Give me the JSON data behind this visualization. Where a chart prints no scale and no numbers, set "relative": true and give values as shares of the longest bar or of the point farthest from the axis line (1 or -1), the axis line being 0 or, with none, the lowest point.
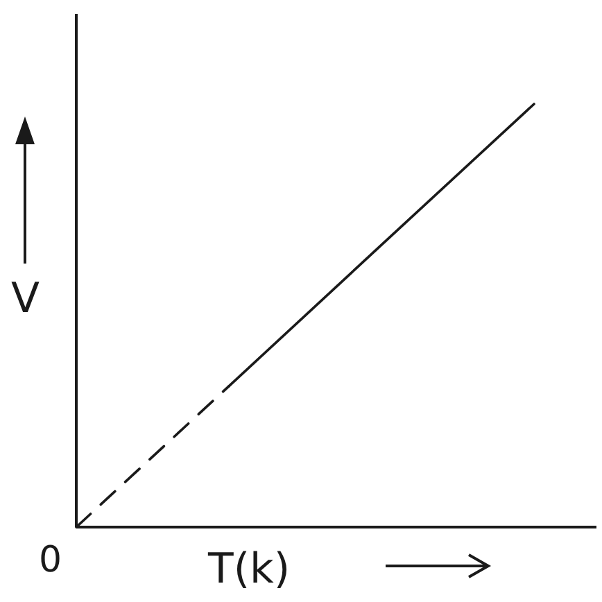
{
  "chart_data": {
    "type": "line",
    "relative": true,
    "xlabel": "T(k)",
    "ylabel": "V",
    "annotations": [
      "0"
    ],
    "categories": [
      null,
      null,
      null,
      null
    ],
    "series": [
      {
        "color": "#1a1a1a",
        "values": [
          0,
          0.333,
          null,
          null
        ],
        "line_style": "dashed"
      },
      {
        "color": "#1a1a1a",
        "values": [
          null,
          0.333,
          0.667,
          1
        ],
        "line_style": "solid"
      }
    ],
    "marker": "none"
  }
}
